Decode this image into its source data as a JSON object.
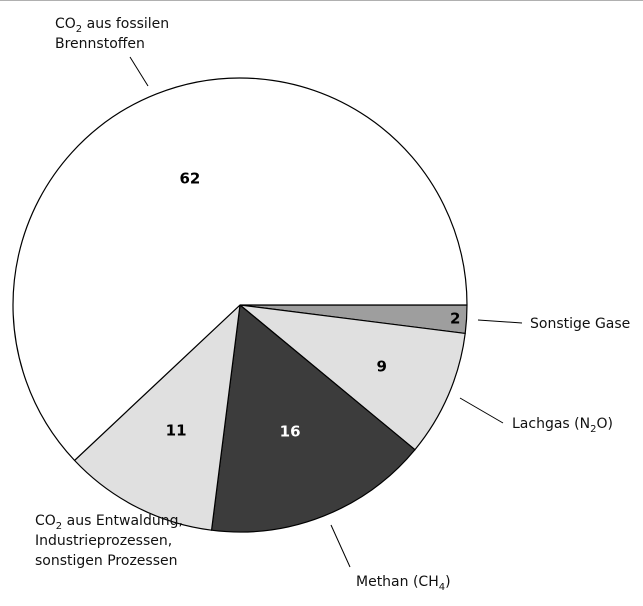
{
  "chart_data": {
    "type": "pie",
    "unit": "",
    "slices": [
      {
        "key": "sonstige",
        "value": 2,
        "value_label": "2",
        "color": "#9e9e9e",
        "text_color": "#000000",
        "label_lines": [
          [
            {
              "t": "Sonstige Gase"
            }
          ]
        ]
      },
      {
        "key": "lachgas",
        "value": 9,
        "value_label": "9",
        "color": "#e0e0e0",
        "text_color": "#000000",
        "label_lines": [
          [
            {
              "t": "Lachgas (N"
            },
            {
              "t": "2",
              "sub": true
            },
            {
              "t": "O)"
            }
          ]
        ]
      },
      {
        "key": "methan",
        "value": 16,
        "value_label": "16",
        "color": "#3c3c3c",
        "text_color": "#ffffff",
        "label_lines": [
          [
            {
              "t": "Methan (CH"
            },
            {
              "t": "4",
              "sub": true
            },
            {
              "t": ")"
            }
          ]
        ]
      },
      {
        "key": "co2-entwaldung",
        "value": 11,
        "value_label": "11",
        "color": "#e0e0e0",
        "text_color": "#000000",
        "label_lines": [
          [
            {
              "t": "CO"
            },
            {
              "t": "2",
              "sub": true
            },
            {
              "t": " aus Entwaldung,"
            }
          ],
          [
            {
              "t": "Industrieprozessen,"
            }
          ],
          [
            {
              "t": "sonstigen Prozessen"
            }
          ]
        ]
      },
      {
        "key": "co2-fossil",
        "value": 62,
        "value_label": "62",
        "color": "#ffffff",
        "text_color": "#000000",
        "label_lines": [
          [
            {
              "t": "CO"
            },
            {
              "t": "2",
              "sub": true
            },
            {
              "t": " aus fossilen"
            }
          ],
          [
            {
              "t": "Brennstoffen"
            }
          ]
        ]
      }
    ],
    "legend": "none",
    "start_angle_deg": 0,
    "direction": "clockwise"
  }
}
